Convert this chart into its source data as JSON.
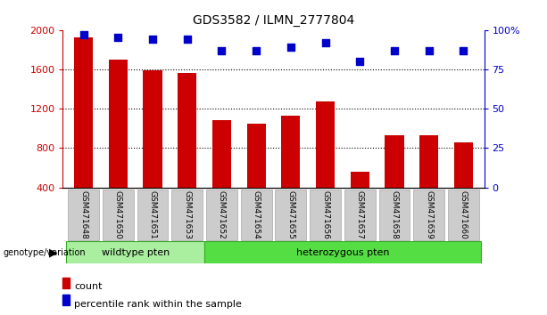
{
  "title": "GDS3582 / ILMN_2777804",
  "samples": [
    "GSM471648",
    "GSM471650",
    "GSM471651",
    "GSM471653",
    "GSM471652",
    "GSM471654",
    "GSM471655",
    "GSM471656",
    "GSM471657",
    "GSM471658",
    "GSM471659",
    "GSM471660"
  ],
  "counts": [
    1920,
    1700,
    1590,
    1560,
    1080,
    1050,
    1130,
    1270,
    560,
    930,
    930,
    860
  ],
  "percentile_ranks": [
    97,
    95,
    94,
    94,
    87,
    87,
    89,
    92,
    80,
    87,
    87,
    87
  ],
  "bar_color": "#cc0000",
  "dot_color": "#0000cc",
  "ylim_left": [
    400,
    2000
  ],
  "ylim_right": [
    0,
    100
  ],
  "yticks_left": [
    400,
    800,
    1200,
    1600,
    2000
  ],
  "yticks_right": [
    0,
    25,
    50,
    75,
    100
  ],
  "yticklabels_right": [
    "0",
    "25",
    "50",
    "75",
    "100%"
  ],
  "grid_values": [
    800,
    1200,
    1600
  ],
  "wildtype_indices": [
    0,
    1,
    2,
    3
  ],
  "heterozygous_indices": [
    4,
    5,
    6,
    7,
    8,
    9,
    10,
    11
  ],
  "wildtype_label": "wildtype pten",
  "heterozygous_label": "heterozygous pten",
  "wildtype_color": "#aaeea0",
  "heterozygous_color": "#55dd44",
  "genotype_label": "genotype/variation",
  "legend_count_label": "count",
  "legend_percentile_label": "percentile rank within the sample",
  "background_color": "#ffffff",
  "xticklabel_bg": "#cccccc",
  "bar_width": 0.55,
  "dot_marker": "s",
  "dot_size": 30,
  "figwidth": 6.13,
  "figheight": 3.54,
  "dpi": 100
}
